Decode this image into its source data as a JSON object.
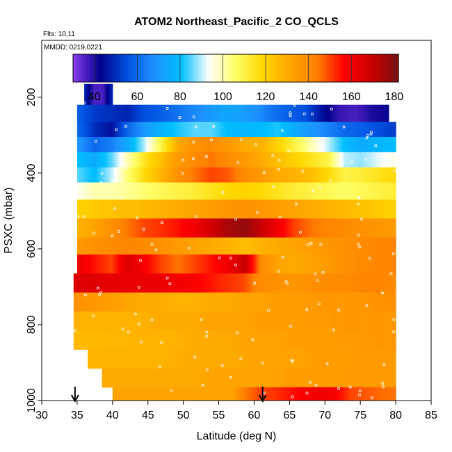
{
  "chart_data": {
    "type": "heatmap",
    "title": "ATOM2 Northeast_Pacific_2 CO_QCLS",
    "flights_note": "Flts: 10,11",
    "date_note": "MMDD: 0219,0221",
    "xlabel": "Latitude (deg N)",
    "ylabel": "PSXC (mbar)",
    "xlim": [
      30,
      85
    ],
    "ylim": [
      1000,
      50
    ],
    "x_ticks": [
      30,
      35,
      40,
      45,
      50,
      55,
      60,
      65,
      70,
      75,
      80,
      85
    ],
    "y_ticks": [
      200,
      400,
      600,
      800,
      1000
    ],
    "colorbar": {
      "range": [
        30,
        182
      ],
      "ticks": [
        40,
        60,
        80,
        100,
        120,
        140,
        160,
        180
      ],
      "colors": [
        "#8b3cf0",
        "#00008b",
        "#0050e0",
        "#1e90ff",
        "#00bfff",
        "#ffffff",
        "#ffff66",
        "#ffd700",
        "#ffa500",
        "#ff7f00",
        "#ff0000",
        "#cd0000",
        "#7a1010"
      ]
    },
    "markers_lat": [
      34.7,
      61.2
    ],
    "levels": [
      {
        "p_top": 165,
        "p_bot": 220,
        "lat_start": 36,
        "lat_end": 40,
        "values": [
          48,
          36,
          36,
          48
        ]
      },
      {
        "p_top": 220,
        "p_bot": 265,
        "lat_start": 35,
        "lat_end": 79,
        "values": [
          58,
          52,
          50,
          48,
          55,
          58,
          62,
          66,
          70,
          74,
          72,
          68,
          62,
          58,
          55,
          45,
          38,
          36,
          40,
          42
        ]
      },
      {
        "p_top": 265,
        "p_bot": 305,
        "lat_start": 35,
        "lat_end": 80,
        "values": [
          60,
          50,
          45,
          60,
          70,
          78,
          82,
          85,
          85,
          80,
          78,
          80,
          82,
          75,
          70,
          65,
          60,
          58,
          55,
          52
        ]
      },
      {
        "p_top": 305,
        "p_bot": 345,
        "lat_start": 35,
        "lat_end": 80,
        "values": [
          70,
          60,
          65,
          75,
          90,
          110,
          130,
          138,
          140,
          135,
          130,
          128,
          120,
          110,
          100,
          90,
          80,
          75,
          78,
          80
        ]
      },
      {
        "p_top": 345,
        "p_bot": 385,
        "lat_start": 35,
        "lat_end": 80,
        "values": [
          80,
          75,
          85,
          100,
          115,
          125,
          135,
          140,
          145,
          140,
          135,
          130,
          125,
          120,
          115,
          110,
          90,
          88,
          92,
          95
        ]
      },
      {
        "p_top": 385,
        "p_bot": 425,
        "lat_start": 35,
        "lat_end": 80,
        "values": [
          85,
          80,
          90,
          105,
          118,
          128,
          138,
          145,
          150,
          148,
          140,
          135,
          130,
          128,
          125,
          118,
          110,
          112,
          115,
          118
        ]
      },
      {
        "p_top": 425,
        "p_bot": 470,
        "lat_start": 35,
        "lat_end": 80,
        "values": [
          95,
          100,
          100,
          102,
          105,
          108,
          110,
          112,
          115,
          118,
          120,
          118,
          115,
          112,
          110,
          108,
          106,
          108,
          110,
          112
        ]
      },
      {
        "p_top": 470,
        "p_bot": 520,
        "lat_start": 35,
        "lat_end": 80,
        "values": [
          120,
          122,
          124,
          125,
          126,
          128,
          130,
          132,
          134,
          136,
          138,
          136,
          134,
          132,
          130,
          128,
          126,
          124,
          122,
          120
        ]
      },
      {
        "p_top": 520,
        "p_bot": 570,
        "lat_start": 35,
        "lat_end": 80,
        "values": [
          128,
          132,
          138,
          145,
          150,
          152,
          155,
          160,
          168,
          175,
          178,
          170,
          160,
          150,
          145,
          142,
          140,
          138,
          136,
          135
        ]
      },
      {
        "p_top": 570,
        "p_bot": 615,
        "lat_start": 35,
        "lat_end": 80,
        "values": [
          135,
          138,
          140,
          142,
          140,
          138,
          135,
          132,
          130,
          128,
          125,
          128,
          130,
          132,
          134,
          136,
          138,
          140,
          142,
          142
        ]
      },
      {
        "p_top": 615,
        "p_bot": 665,
        "lat_start": 35,
        "lat_end": 80,
        "values": [
          160,
          155,
          150,
          165,
          158,
          150,
          145,
          150,
          155,
          160,
          170,
          140,
          132,
          130,
          132,
          135,
          138,
          140,
          142,
          142
        ]
      },
      {
        "p_top": 665,
        "p_bot": 715,
        "lat_start": 34.5,
        "lat_end": 80,
        "values": [
          165,
          165,
          163,
          162,
          162,
          162,
          160,
          158,
          155,
          152,
          150,
          140,
          138,
          136,
          138,
          140,
          140,
          142,
          142,
          140
        ]
      },
      {
        "p_top": 715,
        "p_bot": 765,
        "lat_start": 34.5,
        "lat_end": 80,
        "values": [
          138,
          136,
          134,
          132,
          130,
          130,
          128,
          128,
          130,
          130,
          132,
          132,
          134,
          134,
          135,
          136,
          136,
          136,
          138,
          138
        ]
      },
      {
        "p_top": 765,
        "p_bot": 815,
        "lat_start": 34.5,
        "lat_end": 80,
        "values": [
          128,
          128,
          128,
          128,
          128,
          130,
          130,
          130,
          132,
          132,
          132,
          134,
          134,
          134,
          135,
          135,
          136,
          136,
          136,
          136
        ]
      },
      {
        "p_top": 815,
        "p_bot": 865,
        "lat_start": 34.5,
        "lat_end": 80,
        "values": [
          126,
          126,
          127,
          127,
          128,
          128,
          128,
          130,
          130,
          130,
          132,
          132,
          132,
          134,
          134,
          134,
          135,
          135,
          136,
          136
        ]
      },
      {
        "p_top": 865,
        "p_bot": 915,
        "lat_start": 36.5,
        "lat_end": 80,
        "values": [
          128,
          128,
          128,
          128,
          128,
          128,
          130,
          130,
          130,
          130,
          132,
          132,
          132,
          132,
          134,
          134,
          134,
          135,
          135,
          135
        ]
      },
      {
        "p_top": 915,
        "p_bot": 965,
        "lat_start": 38.5,
        "lat_end": 80,
        "values": [
          130,
          130,
          130,
          130,
          130,
          130,
          130,
          132,
          132,
          132,
          132,
          132,
          134,
          134,
          134,
          134,
          135,
          135,
          135,
          135
        ]
      },
      {
        "p_top": 965,
        "p_bot": 1000,
        "lat_start": 40,
        "lat_end": 80,
        "values": [
          132,
          132,
          132,
          132,
          132,
          132,
          132,
          132,
          132,
          145,
          150,
          152,
          155,
          158,
          160,
          158,
          150,
          148,
          146,
          145
        ]
      }
    ]
  }
}
